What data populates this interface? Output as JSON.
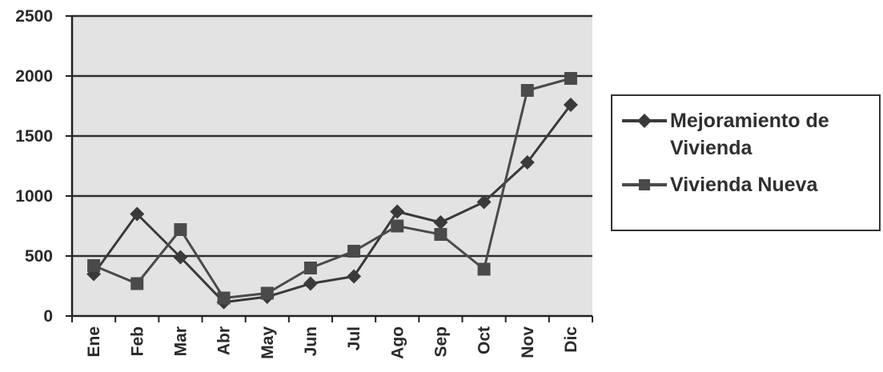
{
  "chart_data": {
    "type": "line",
    "title": "",
    "xlabel": "",
    "ylabel": "",
    "categories": [
      "Ene",
      "Feb",
      "Mar",
      "Abr",
      "May",
      "Jun",
      "Jul",
      "Ago",
      "Sep",
      "Oct",
      "Nov",
      "Dic"
    ],
    "ylim": [
      0,
      2500
    ],
    "yticks": [
      "0",
      "500",
      "1000",
      "1500",
      "2000",
      "2500"
    ],
    "grid": "horizontal",
    "legend_position": "right",
    "series": [
      {
        "name": "Mejoramiento de Vivienda",
        "marker": "diamond",
        "color": "#3a3a3a",
        "values": [
          350,
          850,
          490,
          115,
          160,
          270,
          330,
          870,
          780,
          950,
          1280,
          1760
        ]
      },
      {
        "name": "Vivienda Nueva",
        "marker": "square",
        "color": "#4a4a4a",
        "values": [
          420,
          270,
          720,
          150,
          190,
          400,
          540,
          750,
          680,
          390,
          1880,
          1980
        ]
      }
    ]
  }
}
